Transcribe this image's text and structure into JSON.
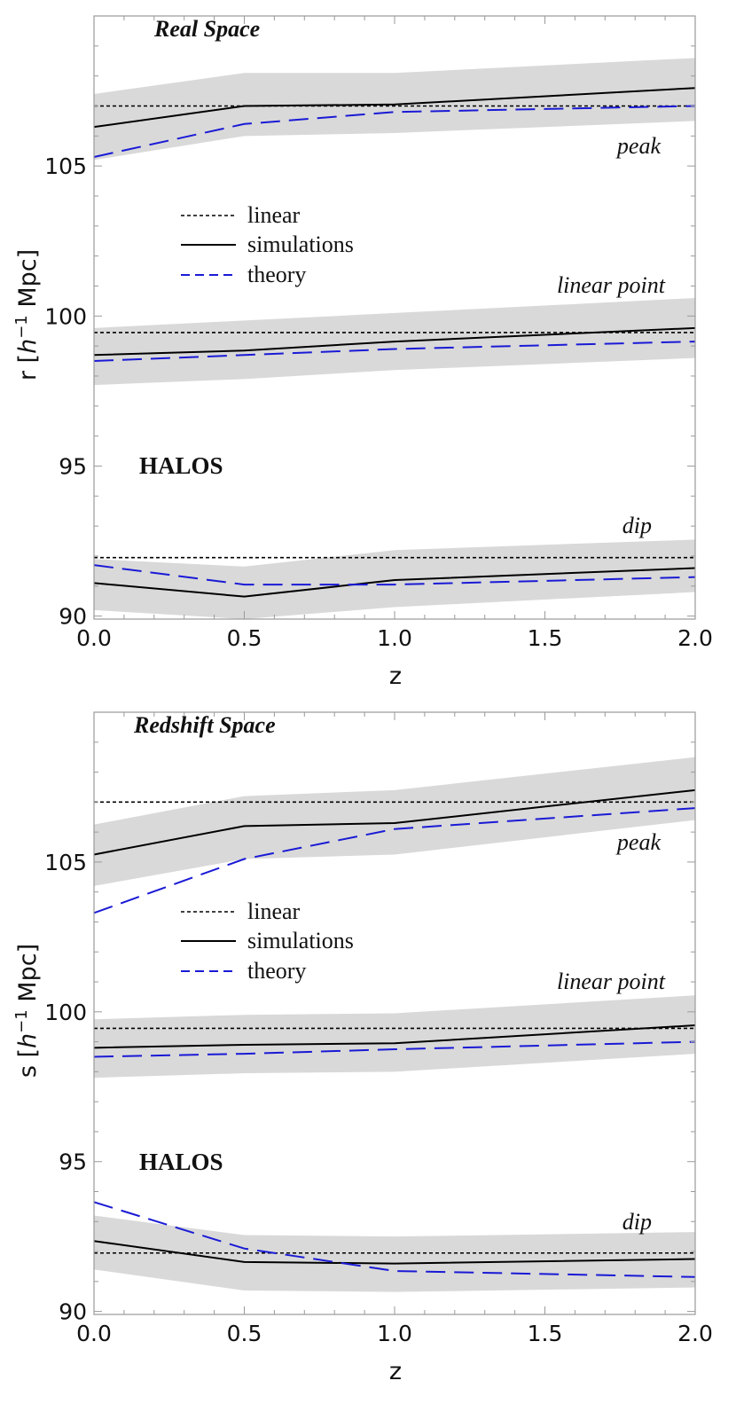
{
  "chart_data": [
    {
      "type": "line",
      "title": "Real Space",
      "xlabel": "z",
      "ylabel_prefix": "r",
      "ylabel_unit_h": "h",
      "ylabel_unit_exp": "−1",
      "ylabel_unit_rest": "Mpc",
      "xlim": [
        0,
        2
      ],
      "ylim": [
        89.9,
        110
      ],
      "xticks": [
        "0.0",
        "0.5",
        "1.0",
        "1.5",
        "2.0"
      ],
      "yticks": [
        "90",
        "95",
        "100",
        "105"
      ],
      "x": [
        0,
        0.5,
        1,
        2
      ],
      "annotations": {
        "peak": "peak",
        "linear_point": "linear point",
        "dip": "dip",
        "halos": "HALOS"
      },
      "legend": {
        "placement": "upper-left",
        "entries": [
          "linear",
          "simulations",
          "theory"
        ]
      },
      "features": [
        {
          "name": "peak",
          "linear": 107.0,
          "simulations": [
            106.3,
            107.0,
            107.05,
            107.6
          ],
          "theory": [
            105.3,
            106.4,
            106.8,
            107.0
          ],
          "band_low": [
            105.2,
            106.0,
            106.1,
            106.5
          ],
          "band_high": [
            107.4,
            108.1,
            108.1,
            108.6
          ]
        },
        {
          "name": "linear point",
          "linear": 99.45,
          "simulations": [
            98.7,
            98.85,
            99.15,
            99.6
          ],
          "theory": [
            98.5,
            98.7,
            98.9,
            99.15
          ],
          "band_low": [
            97.7,
            97.9,
            98.2,
            98.6
          ],
          "band_high": [
            99.6,
            99.85,
            100.1,
            100.6
          ]
        },
        {
          "name": "dip",
          "linear": 91.95,
          "simulations": [
            91.1,
            90.65,
            91.2,
            91.6
          ],
          "theory": [
            91.7,
            91.05,
            91.05,
            91.3
          ],
          "band_low": [
            90.2,
            89.9,
            90.3,
            90.8
          ],
          "band_high": [
            91.9,
            91.65,
            92.2,
            92.55
          ]
        }
      ]
    },
    {
      "type": "line",
      "title": "Redshift Space",
      "xlabel": "z",
      "ylabel_prefix": "s",
      "ylabel_unit_h": "h",
      "ylabel_unit_exp": "−1",
      "ylabel_unit_rest": "Mpc",
      "xlim": [
        0,
        2
      ],
      "ylim": [
        89.9,
        110
      ],
      "xticks": [
        "0.0",
        "0.5",
        "1.0",
        "1.5",
        "2.0"
      ],
      "yticks": [
        "90",
        "95",
        "100",
        "105"
      ],
      "x": [
        0,
        0.5,
        1,
        2
      ],
      "annotations": {
        "peak": "peak",
        "linear_point": "linear point",
        "dip": "dip",
        "halos": "HALOS"
      },
      "legend": {
        "placement": "upper-left",
        "entries": [
          "linear",
          "simulations",
          "theory"
        ]
      },
      "features": [
        {
          "name": "peak",
          "linear": 107.0,
          "simulations": [
            105.25,
            106.2,
            106.3,
            107.4
          ],
          "theory": [
            103.3,
            105.1,
            106.1,
            106.8
          ],
          "band_low": [
            104.2,
            105.1,
            105.25,
            106.4
          ],
          "band_high": [
            106.25,
            107.2,
            107.4,
            108.5
          ]
        },
        {
          "name": "linear point",
          "linear": 99.45,
          "simulations": [
            98.8,
            98.9,
            98.95,
            99.55
          ],
          "theory": [
            98.5,
            98.6,
            98.75,
            99.0
          ],
          "band_low": [
            97.8,
            97.95,
            98.0,
            98.6
          ],
          "band_high": [
            99.75,
            99.9,
            99.95,
            100.55
          ]
        },
        {
          "name": "dip",
          "linear": 91.95,
          "simulations": [
            92.35,
            91.65,
            91.6,
            91.75
          ],
          "theory": [
            93.65,
            92.1,
            91.35,
            91.15
          ],
          "band_low": [
            91.4,
            90.7,
            90.65,
            90.8
          ],
          "band_high": [
            93.2,
            92.55,
            92.5,
            92.65
          ]
        }
      ]
    }
  ],
  "colors": {
    "band": "#d9d9d9",
    "simulations": "#000000",
    "linear": "#000000",
    "theory": "#1a1ad6",
    "frame": "#9a9a9a"
  }
}
